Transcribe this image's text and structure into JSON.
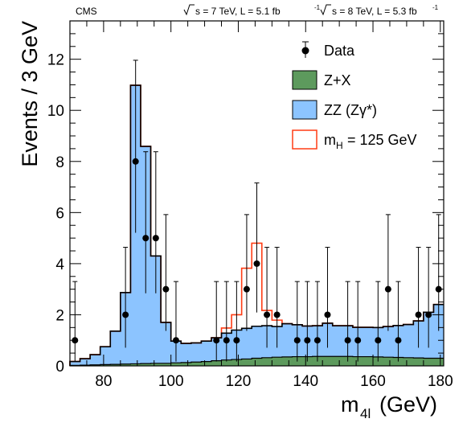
{
  "header": {
    "experiment": "CMS",
    "energy_7": "s = 7 TeV, L = 5.1 fb",
    "energy_8": "s = 8 TeV, L = 5.3 fb",
    "lumi_exp": "-1"
  },
  "chart_data": {
    "type": "bar",
    "ylabel": "Events / 3 GeV",
    "xlabel_main": "m",
    "xlabel_sub": "4l",
    "xlabel_unit": "(GeV)",
    "xlim": [
      70,
      181
    ],
    "ylim": [
      0,
      13.5
    ],
    "xticks": [
      80,
      100,
      120,
      140,
      160,
      180
    ],
    "yticks": [
      0,
      2,
      4,
      6,
      8,
      10,
      12
    ],
    "legend_position": "top-right",
    "bin_width": 3,
    "bin_edges": [
      70,
      73,
      76,
      79,
      82,
      85,
      88,
      91,
      94,
      97,
      100,
      103,
      106,
      109,
      112,
      115,
      118,
      121,
      124,
      127,
      130,
      133,
      136,
      139,
      142,
      145,
      148,
      151,
      154,
      157,
      160,
      163,
      166,
      169,
      172,
      175,
      178,
      181
    ],
    "series": [
      {
        "name": "Z+X",
        "color": "#5d9a5d",
        "values": [
          0.02,
          0.03,
          0.04,
          0.05,
          0.06,
          0.07,
          0.08,
          0.09,
          0.1,
          0.1,
          0.12,
          0.13,
          0.15,
          0.17,
          0.2,
          0.23,
          0.25,
          0.27,
          0.3,
          0.32,
          0.34,
          0.35,
          0.36,
          0.36,
          0.37,
          0.37,
          0.37,
          0.37,
          0.36,
          0.36,
          0.35,
          0.34,
          0.33,
          0.32,
          0.31,
          0.3,
          0.3
        ]
      },
      {
        "name": "ZZ (Zγ*)",
        "color": "#8cc4ff",
        "values": [
          0.15,
          0.25,
          0.4,
          0.7,
          1.3,
          2.8,
          10.9,
          8.5,
          4.2,
          1.6,
          0.85,
          0.75,
          0.75,
          0.8,
          0.9,
          1.05,
          1.15,
          1.2,
          1.25,
          1.25,
          1.2,
          1.3,
          1.25,
          1.2,
          1.2,
          1.3,
          1.2,
          1.2,
          1.15,
          1.15,
          1.15,
          1.2,
          1.25,
          1.3,
          1.45,
          1.8,
          2.1
        ]
      },
      {
        "name": "m_H = 125 GeV",
        "color": "#ff3c14",
        "values": [
          0.15,
          0.25,
          0.4,
          0.7,
          1.3,
          2.8,
          10.9,
          8.5,
          4.2,
          1.6,
          0.85,
          0.75,
          0.75,
          0.8,
          0.9,
          1.25,
          1.75,
          3.55,
          4.5,
          1.85,
          1.45,
          1.3,
          1.25,
          1.2,
          1.2,
          1.3,
          1.2,
          1.2,
          1.15,
          1.15,
          1.15,
          1.2,
          1.25,
          1.3,
          1.45,
          1.8,
          2.1
        ]
      },
      {
        "name": "Data",
        "color": "#000000",
        "x": [
          71.5,
          86.5,
          89.5,
          92.5,
          95.5,
          98.5,
          101.5,
          113.5,
          116.5,
          119.5,
          122.5,
          125.5,
          128.5,
          131.5,
          137.5,
          140.5,
          143.5,
          146.5,
          152.5,
          155.5,
          161.5,
          164.5,
          167.5,
          173.5,
          176.5,
          179.5
        ],
        "y": [
          1,
          2,
          8,
          5,
          5,
          3,
          1,
          1,
          1,
          1,
          3,
          4,
          2,
          2,
          1,
          1,
          1,
          2,
          1,
          1,
          1,
          3,
          1,
          2,
          2,
          3
        ],
        "err_up": [
          2.3,
          2.64,
          3.96,
          3.38,
          3.38,
          2.92,
          2.3,
          2.3,
          2.3,
          2.3,
          2.92,
          3.16,
          2.64,
          2.64,
          2.3,
          2.3,
          2.3,
          2.64,
          2.3,
          2.3,
          2.3,
          2.92,
          2.3,
          2.64,
          2.64,
          2.92
        ],
        "err_down": [
          0.83,
          1.29,
          2.79,
          2.16,
          2.16,
          1.63,
          0.83,
          0.83,
          0.83,
          0.83,
          1.63,
          1.91,
          1.29,
          1.29,
          0.83,
          0.83,
          0.83,
          1.29,
          0.83,
          0.83,
          0.83,
          1.63,
          0.83,
          1.29,
          1.29,
          1.63
        ]
      }
    ],
    "legend": [
      {
        "label": "Data",
        "kind": "marker"
      },
      {
        "label": "Z+X",
        "kind": "fill",
        "fill": "#5d9a5d"
      },
      {
        "label": "ZZ (Zγ*)",
        "kind": "fill",
        "fill": "#8cc4ff"
      },
      {
        "label_main": "m",
        "label_sub": "H",
        "label_rest": " = 125 GeV",
        "kind": "outline",
        "stroke": "#ff3c14"
      }
    ]
  }
}
